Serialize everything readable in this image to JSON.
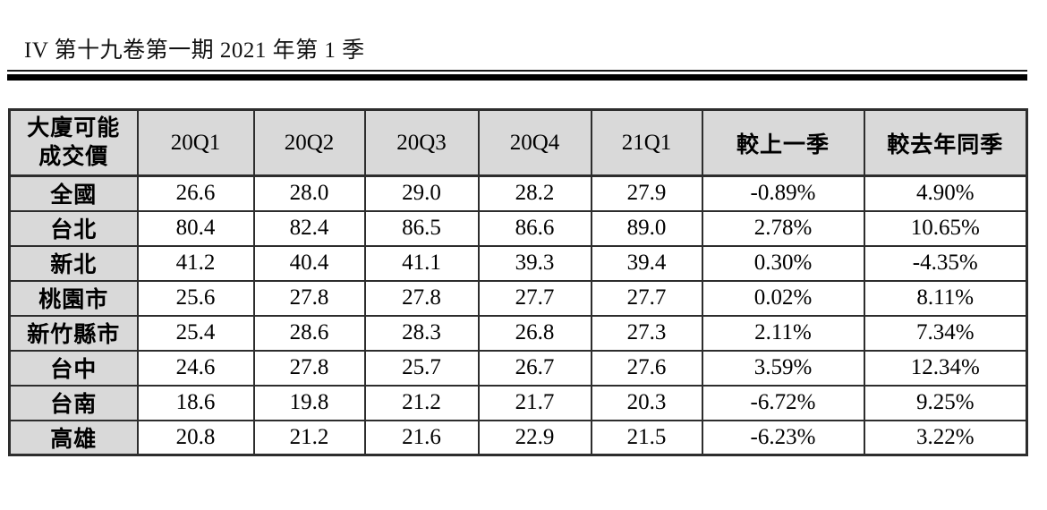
{
  "page": {
    "title": "IV 第十九卷第一期 2021 年第 1 季"
  },
  "colors": {
    "header_bg": "#d9d9d9",
    "border": "#2d2d2d",
    "text": "#000000",
    "page_bg": "#ffffff"
  },
  "table": {
    "corner_header": {
      "line1": "大廈可能",
      "line2": "成交價"
    },
    "columns": [
      "20Q1",
      "20Q2",
      "20Q3",
      "20Q4",
      "21Q1",
      "較上一季",
      "較去年同季"
    ],
    "rows": [
      {
        "region": "全國",
        "values": [
          "26.6",
          "28.0",
          "29.0",
          "28.2",
          "27.9",
          "-0.89%",
          "4.90%"
        ]
      },
      {
        "region": "台北",
        "values": [
          "80.4",
          "82.4",
          "86.5",
          "86.6",
          "89.0",
          "2.78%",
          "10.65%"
        ]
      },
      {
        "region": "新北",
        "values": [
          "41.2",
          "40.4",
          "41.1",
          "39.3",
          "39.4",
          "0.30%",
          "-4.35%"
        ]
      },
      {
        "region": "桃園市",
        "values": [
          "25.6",
          "27.8",
          "27.8",
          "27.7",
          "27.7",
          "0.02%",
          "8.11%"
        ]
      },
      {
        "region": "新竹縣市",
        "values": [
          "25.4",
          "28.6",
          "28.3",
          "26.8",
          "27.3",
          "2.11%",
          "7.34%"
        ]
      },
      {
        "region": "台中",
        "values": [
          "24.6",
          "27.8",
          "25.7",
          "26.7",
          "27.6",
          "3.59%",
          "12.34%"
        ]
      },
      {
        "region": "台南",
        "values": [
          "18.6",
          "19.8",
          "21.2",
          "21.7",
          "20.3",
          "-6.72%",
          "9.25%"
        ]
      },
      {
        "region": "高雄",
        "values": [
          "20.8",
          "21.2",
          "21.6",
          "22.9",
          "21.5",
          "-6.23%",
          "3.22%"
        ]
      }
    ]
  }
}
